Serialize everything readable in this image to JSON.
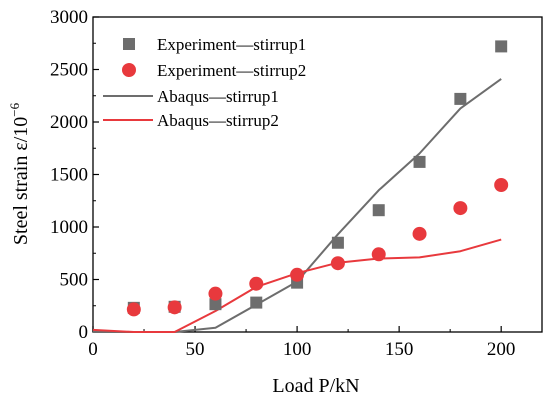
{
  "chart_data": {
    "type": "scatter",
    "xlabel": "Load  P/kN",
    "ylabel_main": "Steel strain  ε/10",
    "ylabel_exp": "−6",
    "xlim": [
      0,
      220
    ],
    "ylim": [
      0,
      3000
    ],
    "x_ticks": [
      0,
      50,
      100,
      150,
      200
    ],
    "y_ticks": [
      0,
      500,
      1000,
      1500,
      2000,
      2500,
      3000
    ],
    "legend_position": "top-left",
    "grid": false,
    "series": [
      {
        "name": "Experiment—stirrup1",
        "kind": "marker-square",
        "color": "#6d6d6d",
        "points": [
          [
            20,
            230
          ],
          [
            40,
            240
          ],
          [
            60,
            265
          ],
          [
            80,
            280
          ],
          [
            100,
            470
          ],
          [
            120,
            850
          ],
          [
            140,
            1160
          ],
          [
            160,
            1620
          ],
          [
            180,
            2220
          ],
          [
            200,
            2720
          ]
        ]
      },
      {
        "name": "Experiment—stirrup2",
        "kind": "marker-circle",
        "color": "#e8393d",
        "points": [
          [
            20,
            215
          ],
          [
            40,
            235
          ],
          [
            60,
            365
          ],
          [
            80,
            460
          ],
          [
            100,
            545
          ],
          [
            120,
            655
          ],
          [
            140,
            740
          ],
          [
            160,
            935
          ],
          [
            180,
            1180
          ],
          [
            200,
            1400
          ]
        ]
      },
      {
        "name": "Abaqus—stirrup1",
        "kind": "line",
        "color": "#6d6d6d",
        "points": [
          [
            0,
            0
          ],
          [
            20,
            0
          ],
          [
            40,
            0
          ],
          [
            60,
            40
          ],
          [
            80,
            260
          ],
          [
            100,
            480
          ],
          [
            120,
            930
          ],
          [
            140,
            1350
          ],
          [
            160,
            1700
          ],
          [
            180,
            2130
          ],
          [
            200,
            2410
          ]
        ]
      },
      {
        "name": "Abaqus—stirrup2",
        "kind": "line",
        "color": "#e8393d",
        "points": [
          [
            0,
            20
          ],
          [
            20,
            0
          ],
          [
            40,
            0
          ],
          [
            60,
            200
          ],
          [
            80,
            430
          ],
          [
            100,
            560
          ],
          [
            120,
            660
          ],
          [
            140,
            700
          ],
          [
            160,
            710
          ],
          [
            180,
            770
          ],
          [
            200,
            880
          ]
        ]
      }
    ]
  }
}
